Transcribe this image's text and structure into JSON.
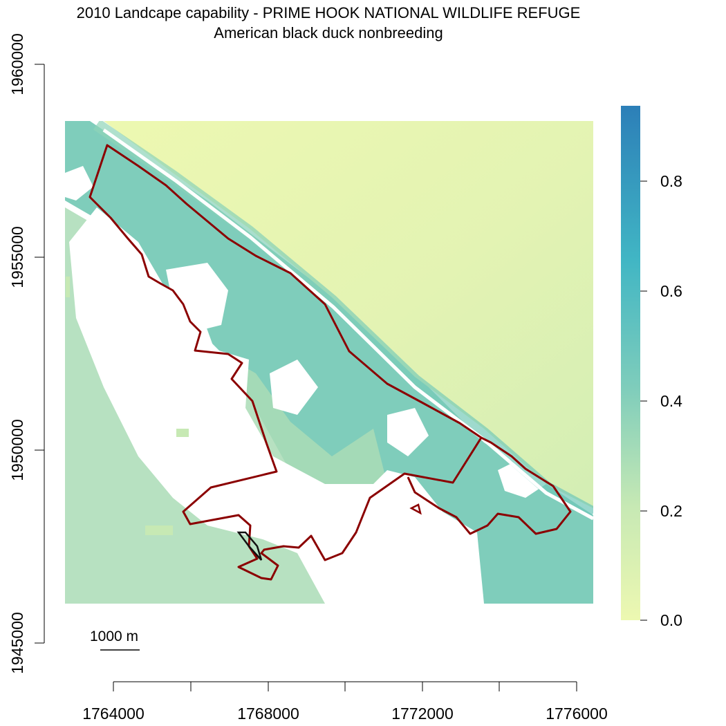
{
  "title": "2010 Landcape capability - PRIME HOOK NATIONAL WILDLIFE REFUGE",
  "subtitle": "American black duck nonbreeding",
  "map": {
    "x_axis": {
      "ticks": [
        1764000,
        1766000,
        1768000,
        1770000,
        1772000,
        1774000,
        1776000
      ],
      "labels": [
        "1764000",
        "1768000",
        "1772000",
        "1776000"
      ]
    },
    "y_axis": {
      "ticks": [
        1945000,
        1950000,
        1955000,
        1960000
      ],
      "labels": [
        "1945000",
        "1950000",
        "1955000",
        "1960000"
      ]
    },
    "scale_bar": {
      "label": "1000 m",
      "length_m": 1000
    },
    "legend": {
      "ticks": [
        "0.0",
        "0.2",
        "0.4",
        "0.6",
        "0.8"
      ],
      "range": [
        0,
        0.93
      ],
      "colors": [
        "#edf8b1",
        "#c7e9b4",
        "#7fcdbb",
        "#41b6c4",
        "#2c7fb8"
      ]
    },
    "boundary_color": "#8b0000"
  }
}
